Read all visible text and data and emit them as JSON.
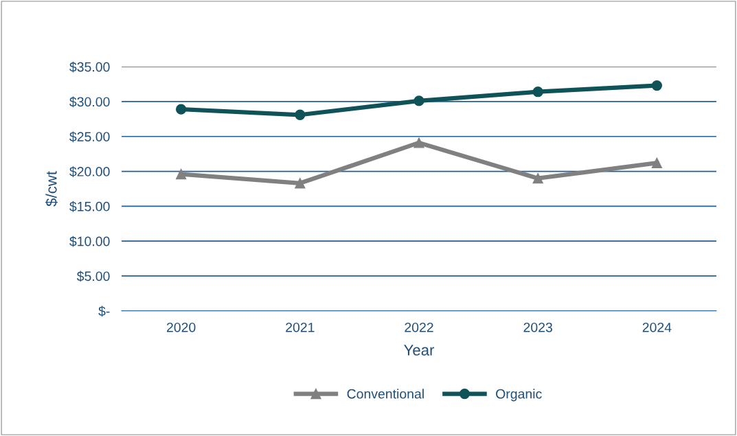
{
  "chart_data": {
    "type": "line",
    "xlabel": "Year",
    "ylabel": "$/cwt",
    "categories": [
      "2020",
      "2021",
      "2022",
      "2023",
      "2024"
    ],
    "series": [
      {
        "name": "Conventional",
        "color": "#808080",
        "marker": "triangle",
        "values": [
          19.6,
          18.3,
          24.1,
          19.0,
          21.2
        ]
      },
      {
        "name": "Organic",
        "color": "#0f5257",
        "marker": "circle",
        "values": [
          28.9,
          28.1,
          30.1,
          31.4,
          32.3
        ]
      }
    ],
    "ylim": [
      0,
      35
    ],
    "yticks": [
      {
        "value": 0,
        "label": "$-"
      },
      {
        "value": 5,
        "label": "$5.00"
      },
      {
        "value": 10,
        "label": "$10.00"
      },
      {
        "value": 15,
        "label": "$15.00"
      },
      {
        "value": 20,
        "label": "$20.00"
      },
      {
        "value": 25,
        "label": "$25.00"
      },
      {
        "value": 30,
        "label": "$30.00"
      },
      {
        "value": 35,
        "label": "$35.00"
      }
    ],
    "grid": "y",
    "legend": "bottom",
    "line_style": "solid"
  }
}
